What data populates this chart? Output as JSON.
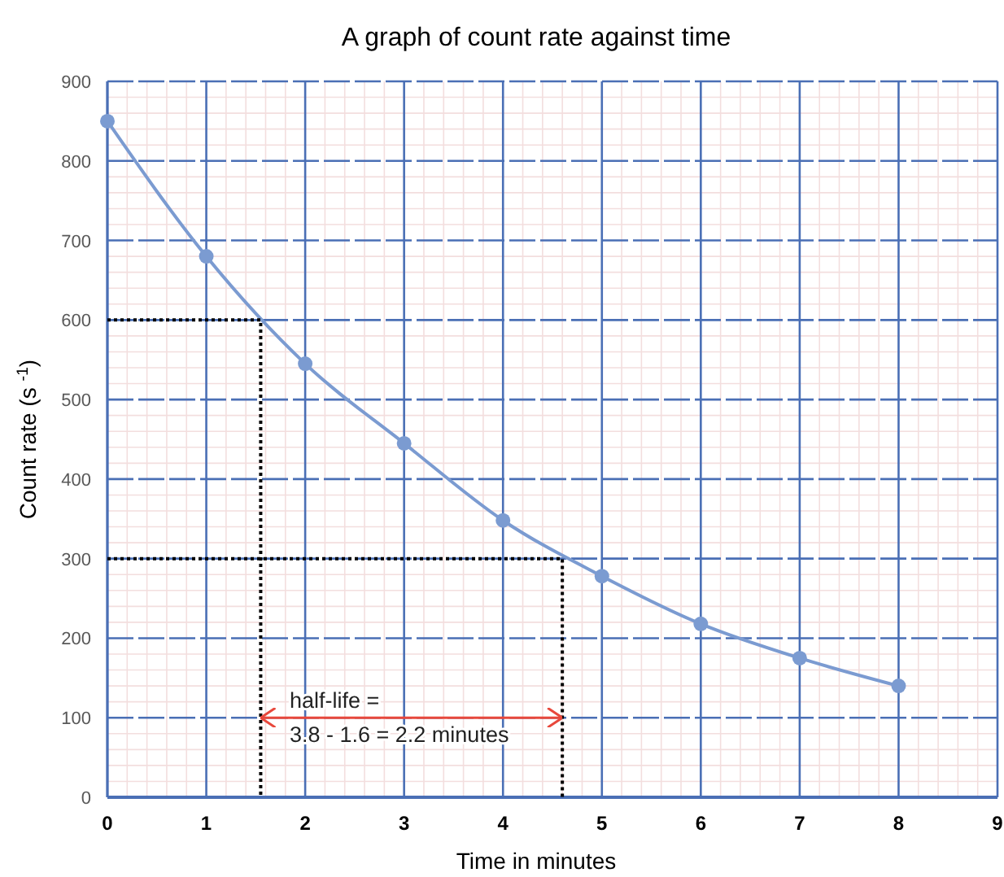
{
  "chart_data": {
    "type": "line",
    "title": "A graph of count rate against time",
    "xlabel": "Time in minutes",
    "ylabel": "Count rate (s $^{-1}$)",
    "x": [
      0,
      1,
      2,
      3,
      4,
      5,
      6,
      7,
      8
    ],
    "series": [
      {
        "color": "#7b9bd1",
        "values": [
          850,
          680,
          545,
          445,
          348,
          278,
          218,
          175,
          140
        ],
        "marker": "circle",
        "line_style": "solid"
      },
      {
        "type": "line",
        "color": "#000000",
        "x": [
          0,
          1.55,
          1.55
        ],
        "values": [
          600,
          600,
          0
        ],
        "marker": "none",
        "line_style": "dotted"
      },
      {
        "type": "line",
        "color": "#000000",
        "x": [
          0,
          4.6,
          4.6
        ],
        "values": [
          300,
          300,
          0
        ],
        "marker": "none",
        "line_style": "dotted"
      },
      {
        "type": "line",
        "color": "#e8483c",
        "x": [
          1.55,
          4.6
        ],
        "values": [
          100,
          100
        ],
        "marker": "none",
        "line_style": "solid"
      }
    ],
    "annotations": [
      "half-life =\n3.8 - 1.6 = 2.2 minutes"
    ],
    "xlim": [
      0,
      9
    ],
    "xticks": [
      0,
      1,
      2,
      3,
      4,
      5,
      6,
      7,
      8,
      9
    ],
    "ylim": [
      0,
      900
    ],
    "yticks": [
      0,
      100,
      200,
      300,
      400,
      500,
      600,
      700,
      800,
      900
    ],
    "grid": true
  }
}
